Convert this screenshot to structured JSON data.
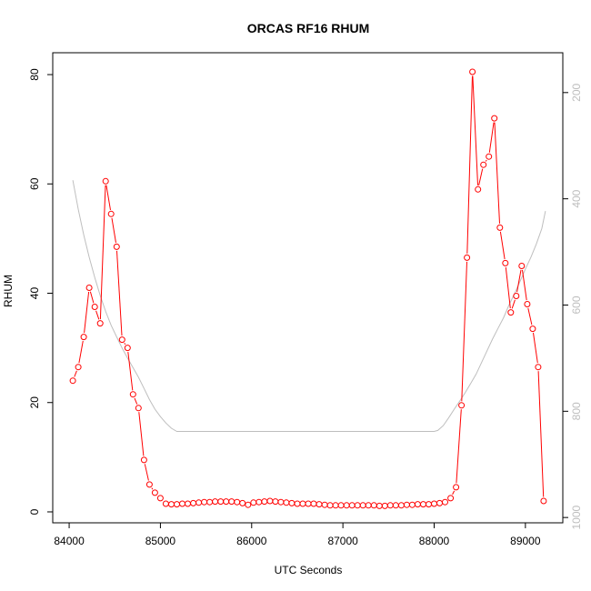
{
  "chart_data": {
    "type": "line",
    "title": "ORCAS RF16 RHUM",
    "xlabel": "UTC Seconds",
    "ylabel": "RHUM",
    "xlim": [
      83820,
      89410
    ],
    "ylim": [
      -2,
      84
    ],
    "x_ticks": [
      84000,
      85000,
      86000,
      87000,
      88000,
      89000
    ],
    "y_ticks": [
      0,
      20,
      40,
      60,
      80
    ],
    "y2_ticks": [
      200,
      400,
      600,
      800,
      1000
    ],
    "y2lim": [
      1010,
      125
    ],
    "grid": false,
    "series": [
      {
        "role": "primary",
        "style": "line-with-circles",
        "color": "#ff0000",
        "x": [
          84040,
          84100,
          84160,
          84220,
          84280,
          84340,
          84400,
          84460,
          84520,
          84580,
          84640,
          84700,
          84760,
          84820,
          84880,
          84940,
          85000,
          85060,
          85120,
          85180,
          85240,
          85300,
          85360,
          85420,
          85480,
          85540,
          85600,
          85660,
          85720,
          85780,
          85840,
          85900,
          85960,
          86020,
          86080,
          86140,
          86200,
          86260,
          86320,
          86380,
          86440,
          86500,
          86560,
          86620,
          86680,
          86740,
          86800,
          86860,
          86920,
          86980,
          87040,
          87100,
          87160,
          87220,
          87280,
          87340,
          87400,
          87460,
          87520,
          87580,
          87640,
          87700,
          87760,
          87820,
          87880,
          87940,
          88000,
          88060,
          88120,
          88180,
          88240,
          88300,
          88360,
          88420,
          88480,
          88540,
          88600,
          88660,
          88720,
          88780,
          88840,
          88900,
          88960,
          89020,
          89080,
          89140,
          89200
        ],
        "y": [
          24,
          26.5,
          32,
          41,
          37.5,
          34.5,
          60.5,
          54.5,
          48.5,
          31.5,
          30,
          21.5,
          19,
          9.5,
          5,
          3.5,
          2.5,
          1.5,
          1.4,
          1.4,
          1.5,
          1.5,
          1.6,
          1.7,
          1.8,
          1.8,
          1.9,
          1.9,
          1.9,
          1.9,
          1.8,
          1.6,
          1.3,
          1.7,
          1.8,
          1.9,
          2,
          1.9,
          1.8,
          1.7,
          1.6,
          1.5,
          1.5,
          1.5,
          1.5,
          1.4,
          1.3,
          1.2,
          1.2,
          1.2,
          1.2,
          1.2,
          1.2,
          1.2,
          1.2,
          1.2,
          1.1,
          1.1,
          1.2,
          1.2,
          1.2,
          1.3,
          1.3,
          1.4,
          1.4,
          1.4,
          1.5,
          1.6,
          1.8,
          2.5,
          4.5,
          19.5,
          46.5,
          80.5,
          59,
          63.5,
          65,
          72,
          52,
          45.5,
          36.5,
          39.5,
          45,
          38,
          33.5,
          26.5,
          2
        ]
      },
      {
        "role": "secondary",
        "style": "line",
        "color": "#bebebe",
        "axis": "right",
        "x": [
          84040,
          84100,
          84160,
          84220,
          84280,
          84340,
          84400,
          84460,
          84520,
          84580,
          84640,
          84700,
          84760,
          84820,
          84880,
          84940,
          85000,
          85060,
          85120,
          85180,
          88000,
          88040,
          88100,
          88160,
          88220,
          88280,
          88340,
          88400,
          88460,
          88520,
          88580,
          88640,
          88700,
          88760,
          88820,
          88880,
          88940,
          89000,
          89060,
          89120,
          89180,
          89220
        ],
        "y": [
          365,
          420,
          468,
          510,
          548,
          582,
          612,
          638,
          660,
          681,
          700,
          718,
          736,
          757,
          778,
          796,
          810,
          822,
          832,
          838,
          838,
          836,
          827,
          812,
          796,
          781,
          765,
          748,
          730,
          708,
          686,
          664,
          644,
          624,
          600,
          579,
          556,
          532,
          510,
          485,
          456,
          423
        ]
      }
    ]
  }
}
